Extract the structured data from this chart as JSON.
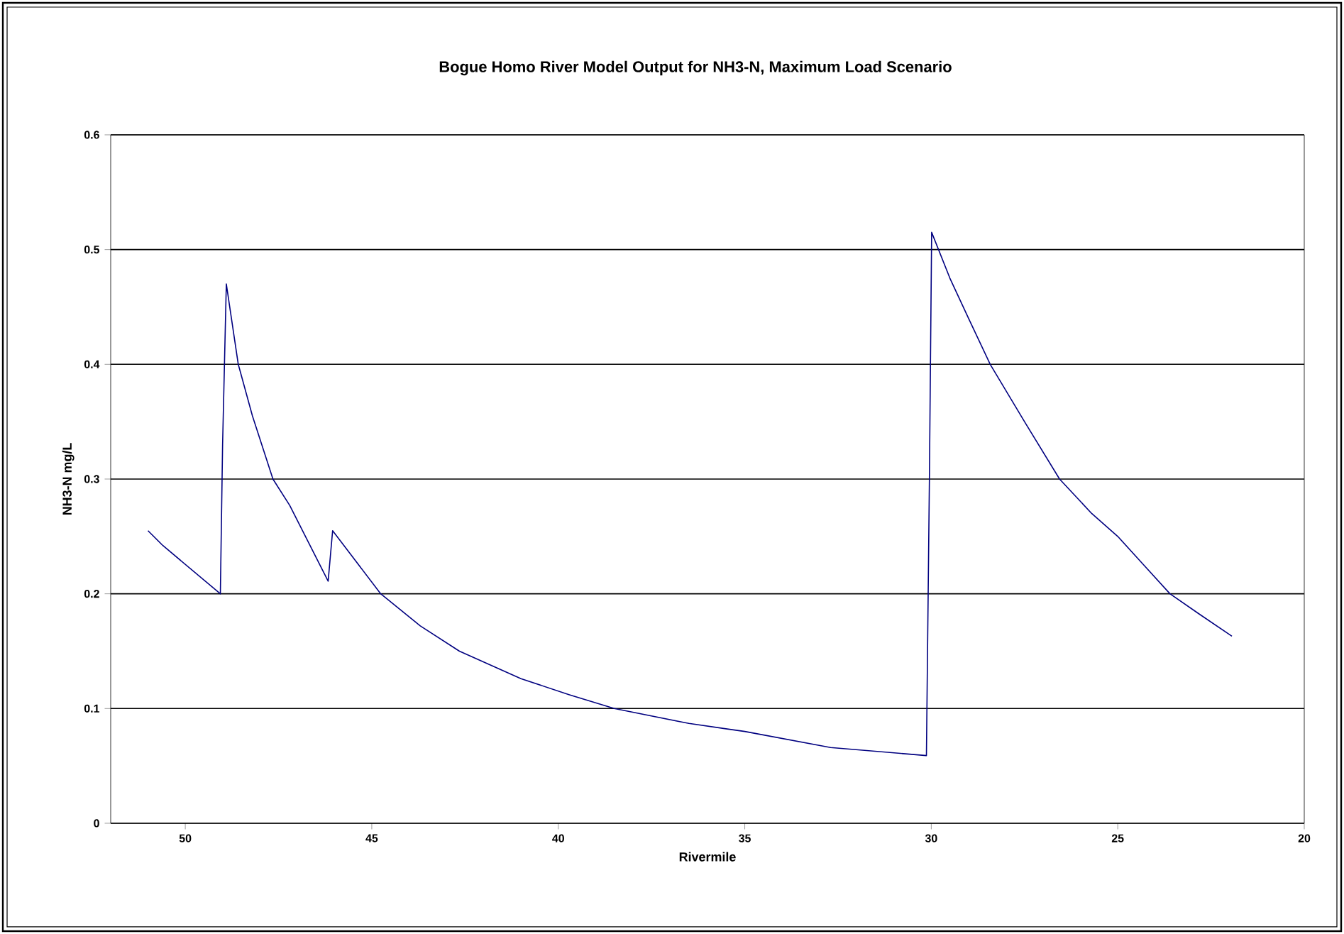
{
  "chart_data": {
    "type": "line",
    "title": "Bogue Homo River Model Output for NH3-N, Maximum Load Scenario",
    "xlabel": "Rivermile",
    "ylabel": "NH3-N mg/L",
    "x": [
      51.0,
      50.6,
      49.06,
      49.0,
      48.9,
      48.58,
      48.2,
      47.65,
      47.2,
      46.17,
      46.05,
      44.76,
      43.7,
      42.65,
      41.0,
      39.7,
      38.5,
      36.5,
      35.0,
      32.7,
      30.13,
      30.05,
      29.99,
      29.5,
      29.0,
      28.42,
      27.5,
      26.56,
      25.7,
      25.0,
      24.3,
      23.6,
      22.8,
      21.94
    ],
    "values": [
      0.255,
      0.242,
      0.2,
      0.33,
      0.47,
      0.4,
      0.355,
      0.3,
      0.277,
      0.211,
      0.255,
      0.2,
      0.172,
      0.15,
      0.126,
      0.112,
      0.1,
      0.087,
      0.08,
      0.066,
      0.059,
      0.3,
      0.515,
      0.475,
      0.44,
      0.4,
      0.35,
      0.3,
      0.27,
      0.25,
      0.225,
      0.2,
      0.182,
      0.163
    ],
    "color": "#000080",
    "xlim": [
      52,
      20
    ],
    "ylim": [
      0,
      0.6
    ],
    "xticks": [
      50,
      45,
      40,
      35,
      30,
      25,
      20
    ],
    "yticks": [
      0,
      0.1,
      0.2,
      0.3,
      0.4,
      0.5,
      0.6
    ],
    "grid": "y"
  }
}
